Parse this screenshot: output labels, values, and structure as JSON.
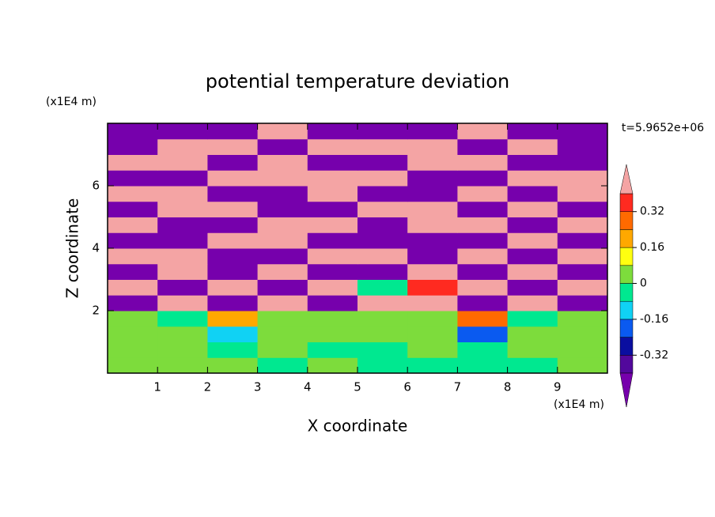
{
  "chart_data": {
    "type": "contour",
    "title": "potential temperature deviation",
    "x_label": "X coordinate",
    "y_label": "Z coordinate",
    "x_unit": "(x1E4 m)",
    "y_unit": "(x1E4 m)",
    "annotation": "t=5.9652e+06",
    "xlim": [
      0,
      10
    ],
    "ylim": [
      0,
      8
    ],
    "xticks": [
      1,
      2,
      3,
      4,
      5,
      6,
      7,
      8,
      9
    ],
    "yticks": [
      2,
      4,
      6
    ],
    "levels": [
      -0.4,
      -0.32,
      -0.24,
      -0.16,
      -0.08,
      0,
      0.08,
      0.16,
      0.24,
      0.32,
      0.4
    ],
    "colors": [
      "#52089c",
      "#0a0ea0",
      "#0a5af0",
      "#10d2f4",
      "#00e890",
      "#7ddc3c",
      "#ffff10",
      "#ffa800",
      "#ff6a00",
      "#ff2a20"
    ],
    "under_color": "#7600ac",
    "over_color": "#f4a4a4",
    "colorbar_ticks": [
      -0.32,
      -0.16,
      0,
      0.16,
      0.32
    ],
    "x": [
      0.5,
      1.5,
      2.5,
      3.5,
      4.5,
      5.5,
      6.5,
      7.5,
      8.5,
      9.5
    ],
    "y": [
      0.25,
      0.75,
      1.25,
      1.75,
      2.25,
      2.75,
      3.25,
      3.75,
      4.25,
      4.75,
      5.25,
      5.75,
      6.25,
      6.75,
      7.25,
      7.75
    ],
    "z": [
      [
        0.04,
        0.04,
        0.04,
        -0.04,
        0.04,
        -0.04,
        -0.04,
        -0.04,
        -0.04,
        0.04
      ],
      [
        0.04,
        0.04,
        -0.04,
        0.04,
        -0.04,
        -0.04,
        0.04,
        -0.04,
        0.04,
        0.04
      ],
      [
        0.04,
        0.04,
        -0.12,
        0.04,
        0.04,
        0.04,
        0.04,
        -0.2,
        0.04,
        0.04
      ],
      [
        0.04,
        -0.04,
        0.2,
        0.04,
        0.04,
        0.04,
        0.04,
        0.28,
        -0.04,
        0.04
      ],
      [
        -0.5,
        0.5,
        -0.5,
        0.5,
        -0.5,
        0.5,
        0.5,
        -0.5,
        0.5,
        -0.5
      ],
      [
        0.5,
        -0.5,
        0.5,
        -0.5,
        0.5,
        -0.04,
        0.36,
        0.5,
        -0.5,
        0.5
      ],
      [
        -0.5,
        0.5,
        -0.5,
        0.5,
        -0.5,
        -0.5,
        0.5,
        -0.5,
        0.5,
        -0.5
      ],
      [
        0.5,
        0.5,
        -0.5,
        -0.5,
        0.5,
        0.5,
        -0.5,
        0.5,
        -0.5,
        0.5
      ],
      [
        -0.5,
        -0.5,
        0.5,
        0.5,
        -0.5,
        -0.5,
        -0.5,
        -0.5,
        0.5,
        -0.5
      ],
      [
        0.5,
        -0.5,
        -0.5,
        0.5,
        0.5,
        -0.5,
        0.5,
        0.5,
        -0.5,
        0.5
      ],
      [
        -0.5,
        0.5,
        0.5,
        -0.5,
        -0.5,
        0.5,
        0.5,
        -0.5,
        0.5,
        -0.5
      ],
      [
        0.5,
        0.5,
        -0.5,
        -0.5,
        0.5,
        -0.5,
        -0.5,
        0.5,
        -0.5,
        0.5
      ],
      [
        -0.5,
        -0.5,
        0.5,
        0.5,
        0.5,
        0.5,
        -0.5,
        -0.5,
        0.5,
        0.5
      ],
      [
        0.5,
        0.5,
        -0.5,
        0.5,
        -0.5,
        -0.5,
        0.5,
        0.5,
        -0.5,
        -0.5
      ],
      [
        -0.5,
        0.5,
        0.5,
        -0.5,
        0.5,
        0.5,
        0.5,
        -0.5,
        0.5,
        -0.5
      ],
      [
        -0.5,
        -0.5,
        -0.5,
        0.5,
        -0.5,
        -0.5,
        -0.5,
        0.5,
        -0.5,
        -0.5
      ]
    ]
  }
}
